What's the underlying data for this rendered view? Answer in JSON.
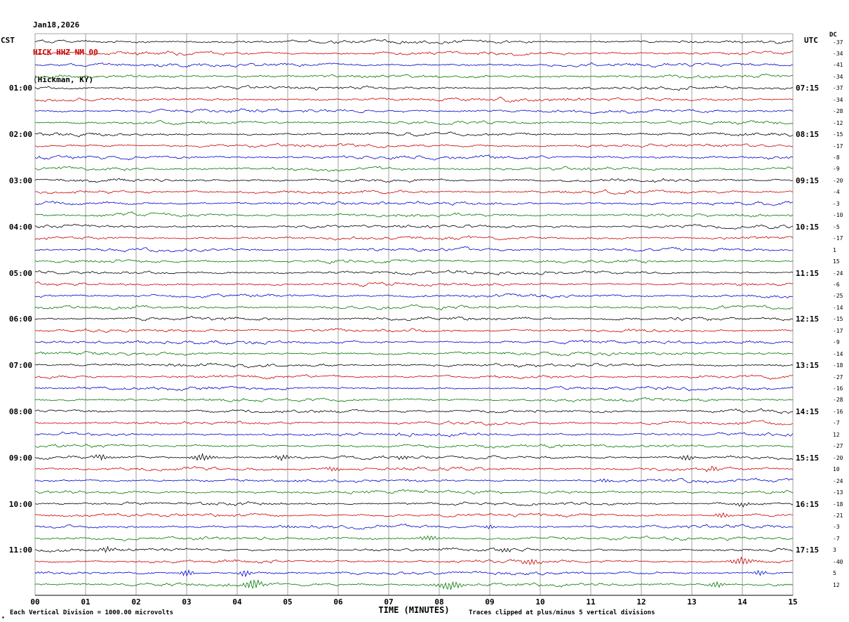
{
  "header": {
    "date": "Jan18,2026",
    "station": "HICK HHZ NM 00",
    "location": "(Hickman, KY)"
  },
  "axes": {
    "left_tz": "CST",
    "right_tz": "UTC",
    "dc_label": "DC"
  },
  "footer": {
    "xlabel": "TIME (MINUTES)",
    "left_note": "Each Vertical Division = 1000.00 microvolts",
    "right_note": "Traces clipped at plus/minus 5 vertical divisions"
  },
  "icons": {
    "corner_mark": "▴"
  },
  "chart_data": {
    "type": "line",
    "subtype": "helicorder-seismogram",
    "title": "HICK HHZ NM 00 (Hickman, KY) Jan18,2026",
    "xlabel": "TIME (MINUTES)",
    "x_ticks": [
      "00",
      "01",
      "02",
      "03",
      "04",
      "05",
      "06",
      "07",
      "08",
      "09",
      "10",
      "11",
      "12",
      "13",
      "14",
      "15"
    ],
    "x_range_minutes": [
      0,
      15
    ],
    "minutes_per_row": 15,
    "rows_per_hour": 4,
    "n_rows": 48,
    "trace_colors": [
      "#000000",
      "#cc0000",
      "#0000cc",
      "#007700"
    ],
    "grid_color": "#888888",
    "left_times": [
      "01:00",
      "02:00",
      "03:00",
      "04:00",
      "05:00",
      "06:00",
      "07:00",
      "08:00",
      "09:00",
      "10:00",
      "11:00"
    ],
    "right_times": [
      "07:15",
      "08:15",
      "09:15",
      "10:15",
      "11:15",
      "12:15",
      "13:15",
      "14:15",
      "15:15",
      "16:15",
      "17:15"
    ],
    "dc_offsets": [
      -37,
      -34,
      -41,
      -34,
      -37,
      -34,
      -28,
      -12,
      -15,
      -17,
      -8,
      -9,
      -20,
      -4,
      -3,
      -10,
      -5,
      -17,
      1,
      15,
      -24,
      -6,
      -25,
      -14,
      -15,
      -17,
      -9,
      -14,
      -18,
      -27,
      -16,
      -28,
      -16,
      -7,
      12,
      -27,
      -20,
      10,
      -24,
      -13,
      -18,
      -21,
      -3,
      -7,
      3,
      -40,
      5,
      12
    ],
    "microvolts_per_division": 1000.0,
    "clip_divisions": 5,
    "events": [
      {
        "row": 36,
        "minute": 1.3,
        "amp": 3.5,
        "sigma": 10
      },
      {
        "row": 36,
        "minute": 3.3,
        "amp": 4.5,
        "sigma": 16
      },
      {
        "row": 36,
        "minute": 4.9,
        "amp": 3.5,
        "sigma": 10
      },
      {
        "row": 36,
        "minute": 7.3,
        "amp": 3,
        "sigma": 10
      },
      {
        "row": 36,
        "minute": 12.9,
        "amp": 4,
        "sigma": 12
      },
      {
        "row": 37,
        "minute": 5.9,
        "amp": 2.5,
        "sigma": 10
      },
      {
        "row": 37,
        "minute": 13.4,
        "amp": 3,
        "sigma": 10
      },
      {
        "row": 38,
        "minute": 11.3,
        "amp": 2.5,
        "sigma": 9
      },
      {
        "row": 40,
        "minute": 14.0,
        "amp": 3,
        "sigma": 12
      },
      {
        "row": 41,
        "minute": 13.6,
        "amp": 3,
        "sigma": 10
      },
      {
        "row": 42,
        "minute": 5.0,
        "amp": 2.5,
        "sigma": 9
      },
      {
        "row": 42,
        "minute": 9.0,
        "amp": 2.5,
        "sigma": 9
      },
      {
        "row": 43,
        "minute": 7.8,
        "amp": 3.5,
        "sigma": 11
      },
      {
        "row": 44,
        "minute": 1.4,
        "amp": 3.5,
        "sigma": 10
      },
      {
        "row": 44,
        "minute": 9.3,
        "amp": 2.5,
        "sigma": 9
      },
      {
        "row": 45,
        "minute": 9.8,
        "amp": 4,
        "sigma": 11
      },
      {
        "row": 45,
        "minute": 14.0,
        "amp": 5,
        "sigma": 14
      },
      {
        "row": 46,
        "minute": 3.0,
        "amp": 4,
        "sigma": 10
      },
      {
        "row": 46,
        "minute": 4.15,
        "amp": 5,
        "sigma": 8
      },
      {
        "row": 46,
        "minute": 14.35,
        "amp": 4,
        "sigma": 9
      },
      {
        "row": 47,
        "minute": 4.3,
        "amp": 6,
        "sigma": 14
      },
      {
        "row": 47,
        "minute": 8.2,
        "amp": 5,
        "sigma": 20
      },
      {
        "row": 47,
        "minute": 13.5,
        "amp": 4,
        "sigma": 10
      }
    ]
  }
}
